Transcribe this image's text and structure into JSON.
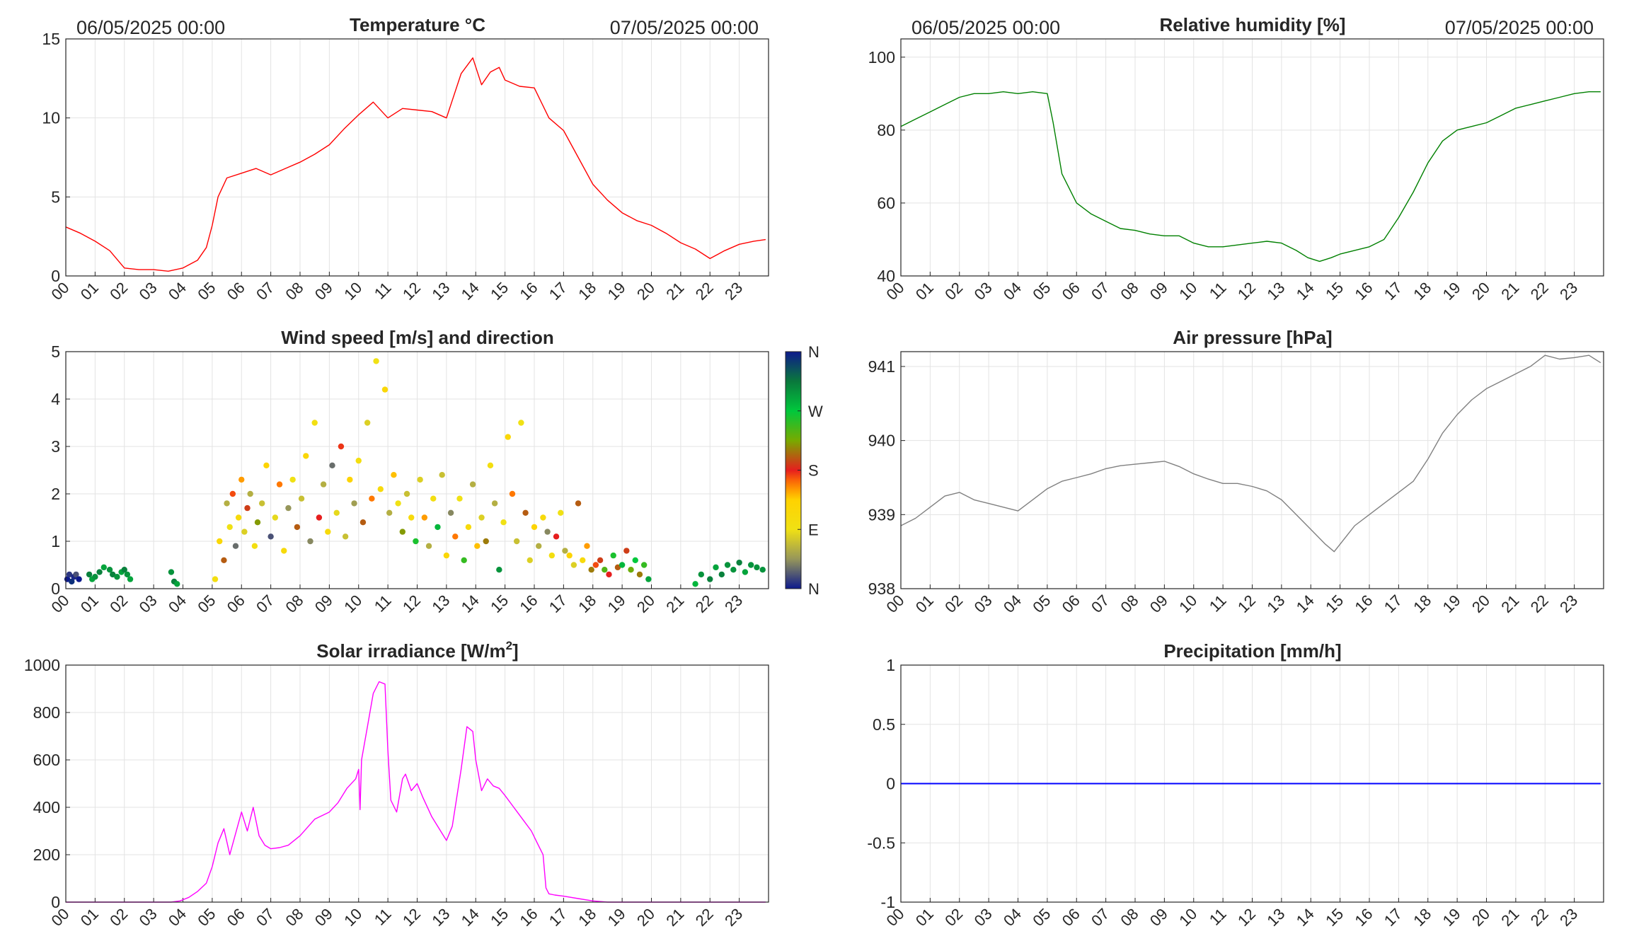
{
  "hour_labels": [
    "00",
    "01",
    "02",
    "03",
    "04",
    "05",
    "06",
    "07",
    "08",
    "09",
    "10",
    "11",
    "12",
    "13",
    "14",
    "15",
    "16",
    "17",
    "18",
    "19",
    "20",
    "21",
    "22",
    "23"
  ],
  "chart_data": [
    {
      "id": "temperature",
      "type": "line",
      "title": "Temperature °C",
      "date_start": "06/05/2025 00:00",
      "date_end": "07/05/2025 00:00",
      "xlim": [
        0,
        24
      ],
      "ylim": [
        0,
        15
      ],
      "yticks": [
        "0",
        "5",
        "10",
        "15"
      ],
      "color": "#ff0000",
      "grid": true,
      "series": [
        {
          "x": [
            0,
            0.5,
            1,
            1.5,
            2,
            2.5,
            3,
            3.5,
            4,
            4.5,
            4.8,
            5,
            5.2,
            5.5,
            6,
            6.5,
            7,
            7.5,
            8,
            8.5,
            9,
            9.5,
            10,
            10.5,
            11,
            11.5,
            12,
            12.5,
            13,
            13.5,
            13.9,
            14.2,
            14.5,
            14.8,
            15,
            15.5,
            16,
            16.5,
            17,
            17.5,
            18,
            18.5,
            19,
            19.5,
            20,
            20.5,
            21,
            21.5,
            22,
            22.5,
            23,
            23.5,
            23.9
          ],
          "y": [
            3.1,
            2.7,
            2.2,
            1.6,
            0.5,
            0.4,
            0.4,
            0.3,
            0.5,
            1.0,
            1.8,
            3.2,
            5.0,
            6.2,
            6.5,
            6.8,
            6.4,
            6.8,
            7.2,
            7.7,
            8.3,
            9.3,
            10.2,
            11.0,
            10.0,
            10.6,
            10.5,
            10.4,
            10.0,
            12.8,
            13.8,
            12.1,
            12.9,
            13.2,
            12.4,
            12.0,
            11.9,
            10.0,
            9.2,
            7.5,
            5.8,
            4.8,
            4.0,
            3.5,
            3.2,
            2.7,
            2.1,
            1.7,
            1.1,
            1.6,
            2.0,
            2.2,
            2.3
          ]
        }
      ]
    },
    {
      "id": "humidity",
      "type": "line",
      "title": "Relative humidity [%]",
      "date_start": "06/05/2025 00:00",
      "date_end": "07/05/2025 00:00",
      "xlim": [
        0,
        24
      ],
      "ylim": [
        40,
        105
      ],
      "yticks": [
        "40",
        "60",
        "80",
        "100"
      ],
      "color": "#008000",
      "grid": true,
      "series": [
        {
          "x": [
            0,
            0.5,
            1,
            1.5,
            2,
            2.5,
            3,
            3.5,
            4,
            4.5,
            5,
            5.2,
            5.5,
            6,
            6.5,
            7,
            7.5,
            8,
            8.5,
            9,
            9.5,
            10,
            10.5,
            11,
            11.5,
            12,
            12.5,
            13,
            13.5,
            13.9,
            14.3,
            14.7,
            15,
            15.5,
            16,
            16.5,
            17,
            17.5,
            18,
            18.5,
            19,
            19.5,
            20,
            20.5,
            21,
            21.5,
            22,
            22.5,
            23,
            23.5,
            23.9
          ],
          "y": [
            81,
            83,
            85,
            87,
            89,
            90,
            90,
            90.5,
            90,
            90.5,
            90,
            82,
            68,
            60,
            57,
            55,
            53,
            52.5,
            51.5,
            51,
            51,
            49,
            48,
            48,
            48.5,
            49,
            49.5,
            49,
            47,
            45,
            44,
            45,
            46,
            47,
            48,
            50,
            56,
            63,
            71,
            77,
            80,
            81,
            82,
            84,
            86,
            87,
            88,
            89,
            90,
            90.5,
            90.5
          ]
        }
      ]
    },
    {
      "id": "wind",
      "type": "scatter",
      "title": "Wind speed [m/s] and direction",
      "xlim": [
        0,
        24
      ],
      "ylim": [
        0,
        5
      ],
      "yticks": [
        "0",
        "1",
        "2",
        "3",
        "4",
        "5"
      ],
      "grid": true,
      "colorbar": {
        "labels": [
          "N",
          "E",
          "S",
          "W",
          "N"
        ],
        "colors": [
          "#0d1a8c",
          "#e6c820",
          "#ffe600",
          "#ff6600",
          "#e61a1a",
          "#59b300",
          "#00cc33",
          "#0a7a40",
          "#0d1a8c"
        ]
      },
      "series": [
        {
          "x": [
            0.05,
            0.12,
            0.2,
            0.28,
            0.35,
            0.45,
            0.8,
            0.9,
            1.0,
            1.15,
            1.3,
            1.5,
            1.6,
            1.75,
            1.9,
            2.0,
            2.1,
            2.2,
            3.6,
            3.7,
            3.8,
            5.1,
            5.25,
            5.4,
            5.5,
            5.6,
            5.7,
            5.8,
            5.9,
            6.0,
            6.1,
            6.2,
            6.3,
            6.45,
            6.55,
            6.7,
            6.85,
            7.0,
            7.15,
            7.3,
            7.45,
            7.6,
            7.75,
            7.9,
            8.05,
            8.2,
            8.35,
            8.5,
            8.65,
            8.8,
            8.95,
            9.1,
            9.25,
            9.4,
            9.55,
            9.7,
            9.85,
            10.0,
            10.15,
            10.3,
            10.45,
            10.6,
            10.75,
            10.9,
            11.05,
            11.2,
            11.35,
            11.5,
            11.65,
            11.8,
            11.95,
            12.1,
            12.25,
            12.4,
            12.55,
            12.7,
            12.85,
            13.0,
            13.15,
            13.3,
            13.45,
            13.6,
            13.75,
            13.9,
            14.05,
            14.2,
            14.35,
            14.5,
            14.65,
            14.8,
            14.95,
            15.1,
            15.25,
            15.4,
            15.55,
            15.7,
            15.85,
            16.0,
            16.15,
            16.3,
            16.45,
            16.6,
            16.75,
            16.9,
            17.05,
            17.2,
            17.35,
            17.5,
            17.65,
            17.8,
            17.95,
            18.1,
            18.25,
            18.4,
            18.55,
            18.7,
            18.85,
            19.0,
            19.15,
            19.3,
            19.45,
            19.6,
            19.75,
            19.9,
            21.5,
            21.7,
            22.0,
            22.2,
            22.4,
            22.6,
            22.8,
            23.0,
            23.2,
            23.4,
            23.6,
            23.8
          ],
          "y": [
            0.2,
            0.3,
            0.15,
            0.25,
            0.3,
            0.2,
            0.3,
            0.2,
            0.25,
            0.35,
            0.45,
            0.4,
            0.3,
            0.25,
            0.35,
            0.4,
            0.3,
            0.2,
            0.35,
            0.15,
            0.1,
            0.2,
            1.0,
            0.6,
            1.8,
            1.3,
            2.0,
            0.9,
            1.5,
            2.3,
            1.2,
            1.7,
            2.0,
            0.9,
            1.4,
            1.8,
            2.6,
            1.1,
            1.5,
            2.2,
            0.8,
            1.7,
            2.3,
            1.3,
            1.9,
            2.8,
            1.0,
            3.5,
            1.5,
            2.2,
            1.2,
            2.6,
            1.6,
            3.0,
            1.1,
            2.3,
            1.8,
            2.7,
            1.4,
            3.5,
            1.9,
            4.8,
            2.1,
            4.2,
            1.6,
            2.4,
            1.8,
            1.2,
            2.0,
            1.5,
            1.0,
            2.3,
            1.5,
            0.9,
            1.9,
            1.3,
            2.4,
            0.7,
            1.6,
            1.1,
            1.9,
            0.6,
            1.3,
            2.2,
            0.9,
            1.5,
            1.0,
            2.6,
            1.8,
            0.4,
            1.4,
            3.2,
            2.0,
            1.0,
            3.5,
            1.6,
            0.6,
            1.3,
            0.9,
            1.5,
            1.2,
            0.7,
            1.1,
            1.6,
            0.8,
            0.7,
            0.5,
            1.8,
            0.6,
            0.9,
            0.4,
            0.5,
            0.6,
            0.4,
            0.3,
            0.7,
            0.45,
            0.5,
            0.8,
            0.4,
            0.6,
            0.3,
            0.5,
            0.2,
            0.1,
            0.3,
            0.2,
            0.45,
            0.3,
            0.5,
            0.4,
            0.55,
            0.35,
            0.5,
            0.45,
            0.4
          ],
          "direction_deg": [
            0,
            10,
            350,
            5,
            20,
            0,
            310,
            290,
            300,
            310,
            290,
            300,
            310,
            300,
            290,
            310,
            300,
            290,
            300,
            310,
            290,
            100,
            120,
            200,
            60,
            90,
            170,
            30,
            110,
            150,
            80,
            190,
            60,
            100,
            220,
            70,
            130,
            20,
            85,
            160,
            110,
            45,
            90,
            200,
            70,
            120,
            40,
            95,
            180,
            60,
            110,
            30,
            85,
            175,
            70,
            130,
            50,
            100,
            200,
            80,
            160,
            90,
            110,
            120,
            60,
            140,
            90,
            220,
            70,
            110,
            260,
            80,
            150,
            60,
            100,
            280,
            70,
            120,
            40,
            160,
            90,
            250,
            110,
            60,
            140,
            80,
            210,
            100,
            60,
            300,
            90,
            120,
            160,
            70,
            90,
            200,
            80,
            130,
            60,
            110,
            40,
            100,
            180,
            90,
            60,
            130,
            80,
            200,
            110,
            150,
            210,
            170,
            190,
            240,
            180,
            260,
            200,
            280,
            190,
            230,
            270,
            210,
            250,
            290,
            280,
            300,
            310,
            290,
            310,
            300,
            300,
            310,
            290,
            300,
            300,
            300
          ]
        }
      ]
    },
    {
      "id": "pressure",
      "type": "line",
      "title": "Air pressure [hPa]",
      "xlim": [
        0,
        24
      ],
      "ylim": [
        938,
        941.2
      ],
      "yticks": [
        "938",
        "939",
        "940",
        "941"
      ],
      "color": "#808080",
      "grid": true,
      "series": [
        {
          "x": [
            0,
            0.5,
            1,
            1.5,
            2,
            2.5,
            3,
            3.5,
            4,
            4.5,
            5,
            5.5,
            6,
            6.5,
            7,
            7.5,
            8,
            8.5,
            9,
            9.5,
            10,
            10.5,
            11,
            11.5,
            12,
            12.5,
            13,
            13.5,
            14,
            14.5,
            14.8,
            15,
            15.5,
            16,
            16.5,
            17,
            17.5,
            18,
            18.5,
            19,
            19.5,
            20,
            20.5,
            21,
            21.5,
            22,
            22.5,
            23,
            23.5,
            23.9
          ],
          "y": [
            938.85,
            938.95,
            939.1,
            939.25,
            939.3,
            939.2,
            939.15,
            939.1,
            939.05,
            939.2,
            939.35,
            939.45,
            939.5,
            939.55,
            939.62,
            939.66,
            939.68,
            939.7,
            939.72,
            939.65,
            939.55,
            939.48,
            939.42,
            939.42,
            939.38,
            939.32,
            939.2,
            939.0,
            938.8,
            938.6,
            938.5,
            938.6,
            938.85,
            939.0,
            939.15,
            939.3,
            939.45,
            939.75,
            940.1,
            940.35,
            940.55,
            940.7,
            940.8,
            940.9,
            941.0,
            941.15,
            941.1,
            941.12,
            941.15,
            941.05
          ]
        }
      ]
    },
    {
      "id": "solar",
      "type": "line",
      "title": "Solar irradiance [W/m",
      "title_sup": "2",
      "title_end": "]",
      "xlim": [
        0,
        24
      ],
      "ylim": [
        0,
        1000
      ],
      "yticks": [
        "0",
        "200",
        "400",
        "600",
        "800",
        "1000"
      ],
      "color": "#ff00ff",
      "grid": true,
      "series": [
        {
          "x": [
            0,
            1,
            2,
            3,
            3.6,
            3.9,
            4.2,
            4.5,
            4.8,
            5.0,
            5.2,
            5.4,
            5.6,
            5.8,
            6.0,
            6.2,
            6.4,
            6.6,
            6.8,
            7.0,
            7.3,
            7.6,
            8.0,
            8.5,
            9.0,
            9.3,
            9.6,
            9.9,
            10.0,
            10.05,
            10.1,
            10.3,
            10.5,
            10.7,
            10.9,
            11.0,
            11.1,
            11.3,
            11.5,
            11.6,
            11.8,
            12.0,
            12.2,
            12.5,
            12.8,
            13.0,
            13.2,
            13.5,
            13.7,
            13.9,
            14.0,
            14.2,
            14.4,
            14.6,
            14.8,
            15.0,
            15.3,
            15.6,
            15.9,
            16.1,
            16.3,
            16.4,
            16.5,
            16.7,
            17.0,
            17.5,
            18.0,
            18.5,
            19,
            20,
            21,
            22,
            23,
            23.9
          ],
          "y": [
            0,
            0,
            0,
            0,
            0,
            5,
            20,
            45,
            80,
            150,
            250,
            310,
            200,
            290,
            380,
            300,
            400,
            280,
            240,
            225,
            230,
            240,
            280,
            350,
            380,
            420,
            480,
            520,
            560,
            390,
            600,
            740,
            880,
            930,
            920,
            640,
            430,
            380,
            520,
            540,
            470,
            500,
            440,
            360,
            300,
            260,
            320,
            560,
            740,
            720,
            600,
            470,
            520,
            490,
            480,
            450,
            400,
            350,
            300,
            250,
            200,
            60,
            35,
            30,
            25,
            15,
            5,
            0,
            0,
            0,
            0,
            0,
            0,
            0
          ]
        }
      ]
    },
    {
      "id": "precipitation",
      "type": "line",
      "title": "Precipitation [mm/h]",
      "xlim": [
        0,
        24
      ],
      "ylim": [
        -1,
        1
      ],
      "yticks": [
        "-1",
        "-0.5",
        "0",
        "0.5",
        "1"
      ],
      "color": "#0000ff",
      "grid": true,
      "series": [
        {
          "x": [
            0,
            23.9
          ],
          "y": [
            0,
            0
          ]
        }
      ]
    }
  ]
}
